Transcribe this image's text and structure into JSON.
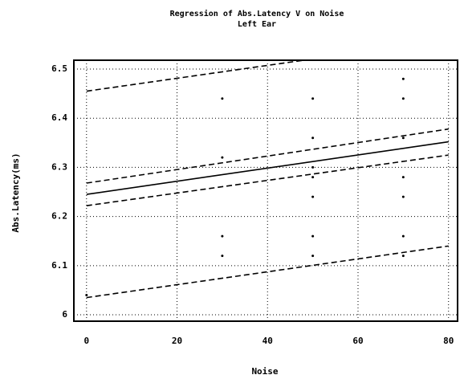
{
  "chart_data": {
    "type": "scatter",
    "title": "Regression of Abs.Latency V on Noise",
    "subtitle": "Left Ear",
    "xlabel": "Noise",
    "ylabel": "Abs.Latency(ms)",
    "x": [
      0,
      30,
      30,
      30,
      30,
      50,
      50,
      50,
      50,
      50,
      50,
      50,
      70,
      70,
      70,
      70,
      70,
      70,
      70
    ],
    "values": [
      6.04,
      6.44,
      6.32,
      6.16,
      6.12,
      6.44,
      6.36,
      6.3,
      6.28,
      6.24,
      6.16,
      6.12,
      6.48,
      6.44,
      6.36,
      6.28,
      6.24,
      6.16,
      6.12
    ],
    "color": "#000000",
    "lines": [
      {
        "style": "solid",
        "x": [
          0,
          80
        ],
        "values": [
          6.245,
          6.352
        ]
      },
      {
        "style": "dashed",
        "x": [
          0,
          80
        ],
        "values": [
          6.268,
          6.378
        ]
      },
      {
        "style": "dashed",
        "x": [
          0,
          80
        ],
        "values": [
          6.222,
          6.325
        ]
      },
      {
        "style": "dashed",
        "x": [
          0,
          80
        ],
        "values": [
          6.455,
          6.56
        ]
      },
      {
        "style": "dashed",
        "x": [
          0,
          80
        ],
        "values": [
          6.035,
          6.14
        ]
      }
    ],
    "xlim": [
      -2.8,
      82
    ],
    "xticks": [
      0,
      20,
      40,
      60,
      80
    ],
    "ylim": [
      5.987,
      6.518
    ],
    "yticks": [
      6,
      6.1,
      6.2,
      6.3,
      6.4,
      6.5
    ],
    "grid": true
  }
}
